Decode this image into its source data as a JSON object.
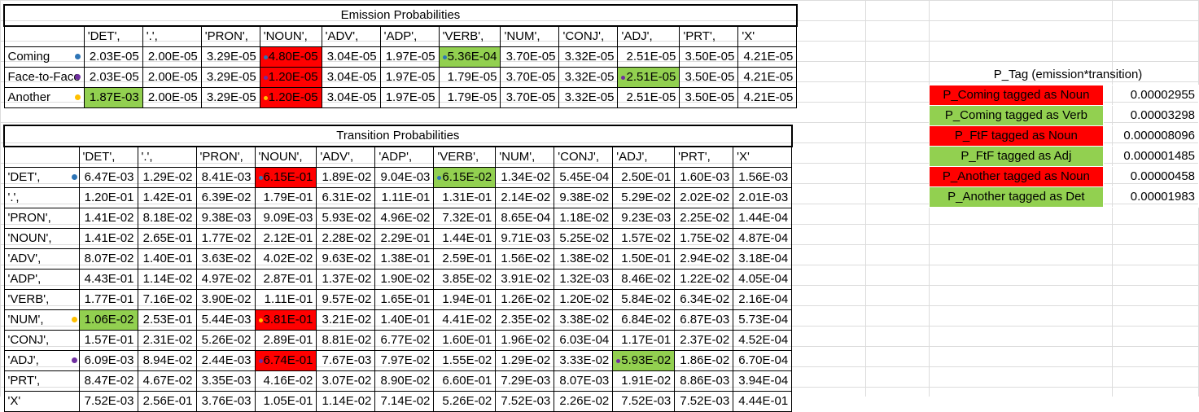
{
  "colors": {
    "red_highlight": "#ff0000",
    "green_highlight": "#92d050",
    "dot_blue": "#2e75b6",
    "dot_yellow": "#ffc000",
    "dot_purple": "#7030a0"
  },
  "emission": {
    "title": "Emission Probabilities",
    "headers": [
      "'DET',",
      "'.',",
      "'PRON',",
      "'NOUN',",
      "'ADV',",
      "'ADP',",
      "'VERB',",
      "'NUM',",
      "'CONJ',",
      "'ADJ',",
      "'PRT',",
      "'X'"
    ],
    "rows": [
      {
        "label": "Coming",
        "dot": "blue",
        "values": [
          "2.03E-05",
          "2.00E-05",
          "3.29E-05",
          "4.80E-05",
          "3.04E-05",
          "1.97E-05",
          "5.36E-04",
          "3.70E-05",
          "3.32E-05",
          "2.51E-05",
          "3.50E-05",
          "4.21E-05"
        ]
      },
      {
        "label": "Face-to-Face",
        "dot": "purple",
        "values": [
          "2.03E-05",
          "2.00E-05",
          "3.29E-05",
          "1.20E-05",
          "3.04E-05",
          "1.97E-05",
          "1.79E-05",
          "3.70E-05",
          "3.32E-05",
          "2.51E-05",
          "3.50E-05",
          "4.21E-05"
        ]
      },
      {
        "label": "Another",
        "dot": "yellow",
        "values": [
          "1.87E-03",
          "2.00E-05",
          "3.29E-05",
          "1.20E-05",
          "3.04E-05",
          "1.97E-05",
          "1.79E-05",
          "3.70E-05",
          "3.32E-05",
          "2.51E-05",
          "3.50E-05",
          "4.21E-05"
        ]
      }
    ]
  },
  "transition": {
    "title": "Transition Probabilities",
    "headers": [
      "'DET',",
      "'.',",
      "'PRON',",
      "'NOUN',",
      "'ADV',",
      "'ADP',",
      "'VERB',",
      "'NUM',",
      "'CONJ',",
      "'ADJ',",
      "'PRT',",
      "'X'"
    ],
    "rows": [
      {
        "label": "'DET',",
        "dot": "blue",
        "values": [
          "6.47E-03",
          "1.29E-02",
          "8.41E-03",
          "6.15E-01",
          "1.89E-02",
          "9.04E-03",
          "6.15E-02",
          "1.34E-02",
          "5.45E-04",
          "2.50E-01",
          "1.60E-03",
          "1.56E-03"
        ]
      },
      {
        "label": "'.',",
        "values": [
          "1.20E-01",
          "1.42E-01",
          "6.39E-02",
          "1.79E-01",
          "6.31E-02",
          "1.11E-01",
          "1.31E-01",
          "2.14E-02",
          "9.38E-02",
          "5.29E-02",
          "2.02E-02",
          "2.01E-03"
        ]
      },
      {
        "label": "'PRON',",
        "values": [
          "1.41E-02",
          "8.18E-02",
          "9.38E-03",
          "9.09E-03",
          "5.93E-02",
          "4.96E-02",
          "7.32E-01",
          "8.65E-04",
          "1.18E-02",
          "9.23E-03",
          "2.25E-02",
          "1.44E-04"
        ]
      },
      {
        "label": "'NOUN',",
        "values": [
          "1.41E-02",
          "2.65E-01",
          "1.77E-02",
          "2.12E-01",
          "2.28E-02",
          "2.29E-01",
          "1.44E-01",
          "9.71E-03",
          "5.25E-02",
          "1.57E-02",
          "1.75E-02",
          "4.87E-04"
        ]
      },
      {
        "label": "'ADV',",
        "values": [
          "8.07E-02",
          "1.40E-01",
          "3.63E-02",
          "4.02E-02",
          "9.63E-02",
          "1.38E-01",
          "2.59E-01",
          "1.56E-02",
          "1.38E-02",
          "1.50E-01",
          "2.94E-02",
          "3.18E-04"
        ]
      },
      {
        "label": "'ADP',",
        "values": [
          "4.43E-01",
          "1.14E-02",
          "4.97E-02",
          "2.87E-01",
          "1.37E-02",
          "1.90E-02",
          "3.85E-02",
          "3.91E-02",
          "1.32E-03",
          "8.46E-02",
          "1.22E-02",
          "4.05E-04"
        ]
      },
      {
        "label": "'VERB',",
        "values": [
          "1.77E-01",
          "7.16E-02",
          "3.90E-02",
          "1.11E-01",
          "9.57E-02",
          "1.65E-01",
          "1.94E-01",
          "1.26E-02",
          "1.20E-02",
          "5.84E-02",
          "6.34E-02",
          "2.16E-04"
        ]
      },
      {
        "label": "'NUM',",
        "dot": "yellow",
        "values": [
          "1.06E-02",
          "2.53E-01",
          "5.44E-03",
          "3.81E-01",
          "3.21E-02",
          "1.40E-01",
          "4.41E-02",
          "2.35E-02",
          "3.38E-02",
          "6.84E-02",
          "6.87E-03",
          "5.73E-04"
        ]
      },
      {
        "label": "'CONJ',",
        "values": [
          "1.57E-01",
          "2.31E-02",
          "5.26E-02",
          "2.89E-01",
          "8.81E-02",
          "6.77E-02",
          "1.60E-01",
          "1.96E-02",
          "6.03E-04",
          "1.17E-01",
          "2.37E-02",
          "4.52E-04"
        ]
      },
      {
        "label": "'ADJ',",
        "dot": "purple",
        "values": [
          "6.09E-03",
          "8.94E-02",
          "2.44E-03",
          "6.74E-01",
          "7.67E-03",
          "7.97E-02",
          "1.55E-02",
          "1.29E-02",
          "3.33E-02",
          "5.93E-02",
          "1.86E-02",
          "6.70E-04"
        ]
      },
      {
        "label": "'PRT',",
        "values": [
          "8.47E-02",
          "4.67E-02",
          "3.35E-03",
          "4.16E-02",
          "3.07E-02",
          "8.90E-02",
          "6.60E-01",
          "7.29E-03",
          "8.07E-03",
          "1.91E-02",
          "8.86E-03",
          "3.94E-04"
        ]
      },
      {
        "label": "'X'",
        "values": [
          "7.52E-03",
          "2.56E-01",
          "3.76E-03",
          "1.05E-01",
          "1.14E-02",
          "7.14E-02",
          "5.26E-02",
          "7.52E-03",
          "2.26E-02",
          "7.52E-03",
          "7.52E-03",
          "4.44E-01"
        ]
      }
    ]
  },
  "ptag": {
    "title": "P_Tag (emission*transition)",
    "rows": [
      {
        "label": "P_Coming tagged as Noun",
        "value": "0.00002955",
        "color": "red"
      },
      {
        "label": "P_Coming tagged as Verb",
        "value": "0.00003298",
        "color": "green"
      },
      {
        "label": "P_FtF tagged as Noun",
        "value": "0.000008096",
        "color": "red"
      },
      {
        "label": "P_FtF tagged as Adj",
        "value": "0.000001485",
        "color": "green"
      },
      {
        "label": "P_Another tagged as Noun",
        "value": "0.00000458",
        "color": "red"
      },
      {
        "label": "P_Another tagged as Det",
        "value": "0.00001983",
        "color": "green"
      }
    ]
  }
}
